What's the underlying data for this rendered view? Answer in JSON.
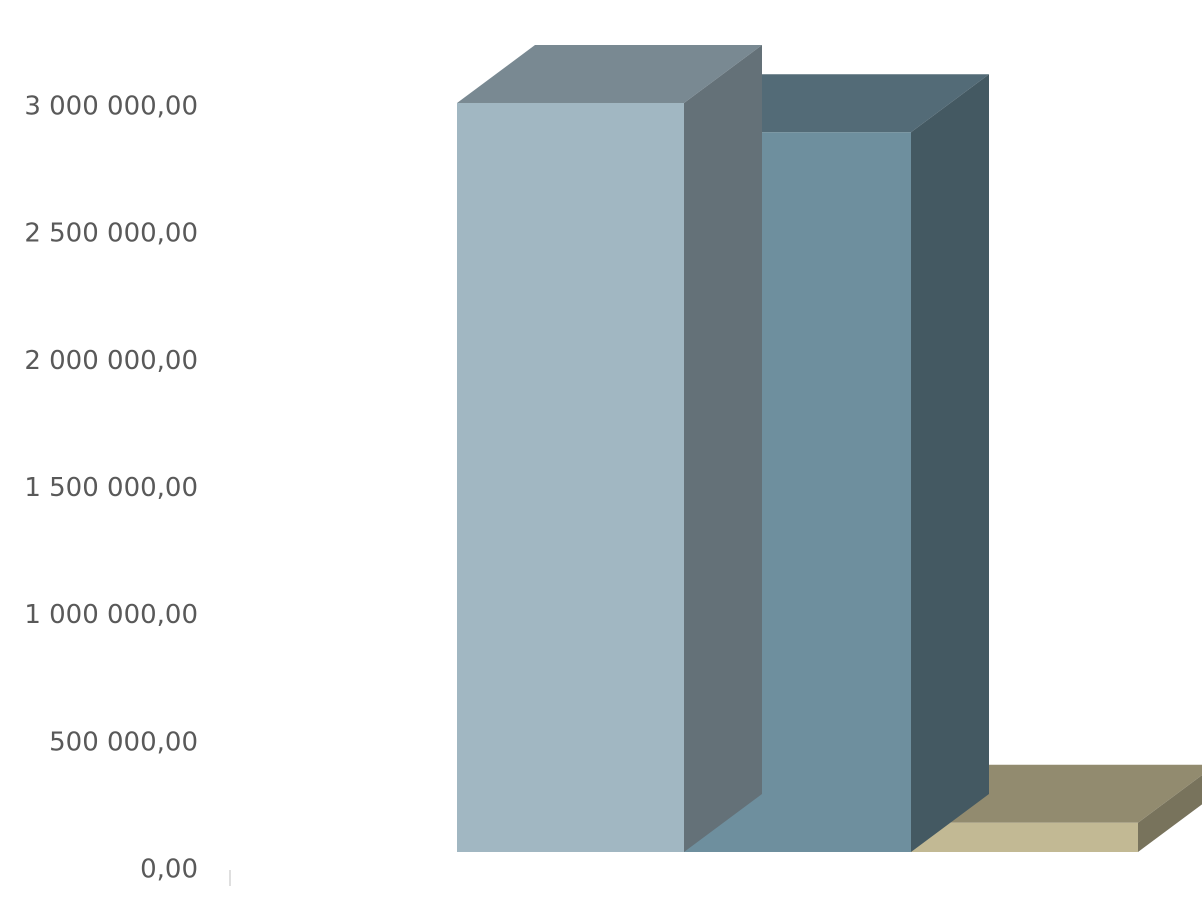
{
  "chart_data": {
    "type": "bar",
    "style": "3d-column",
    "title": "",
    "xlabel": "",
    "ylabel": "",
    "ylim": [
      0,
      3000000
    ],
    "y_ticks": [
      {
        "value": 0,
        "label": "0,00"
      },
      {
        "value": 500000,
        "label": "500 000,00"
      },
      {
        "value": 1000000,
        "label": "1 000 000,00"
      },
      {
        "value": 1500000,
        "label": "1 500 000,00"
      },
      {
        "value": 2000000,
        "label": "2 000 000,00"
      },
      {
        "value": 2500000,
        "label": "2 500 000,00"
      },
      {
        "value": 3000000,
        "label": "3 000 000,00"
      }
    ],
    "grid": false,
    "legend": "none",
    "bars": [
      {
        "value": 2945000,
        "color": "#a1b7c2"
      },
      {
        "value": 2830000,
        "color": "#6e8f9e"
      },
      {
        "value": 115000,
        "color": "#c2b994"
      }
    ]
  }
}
